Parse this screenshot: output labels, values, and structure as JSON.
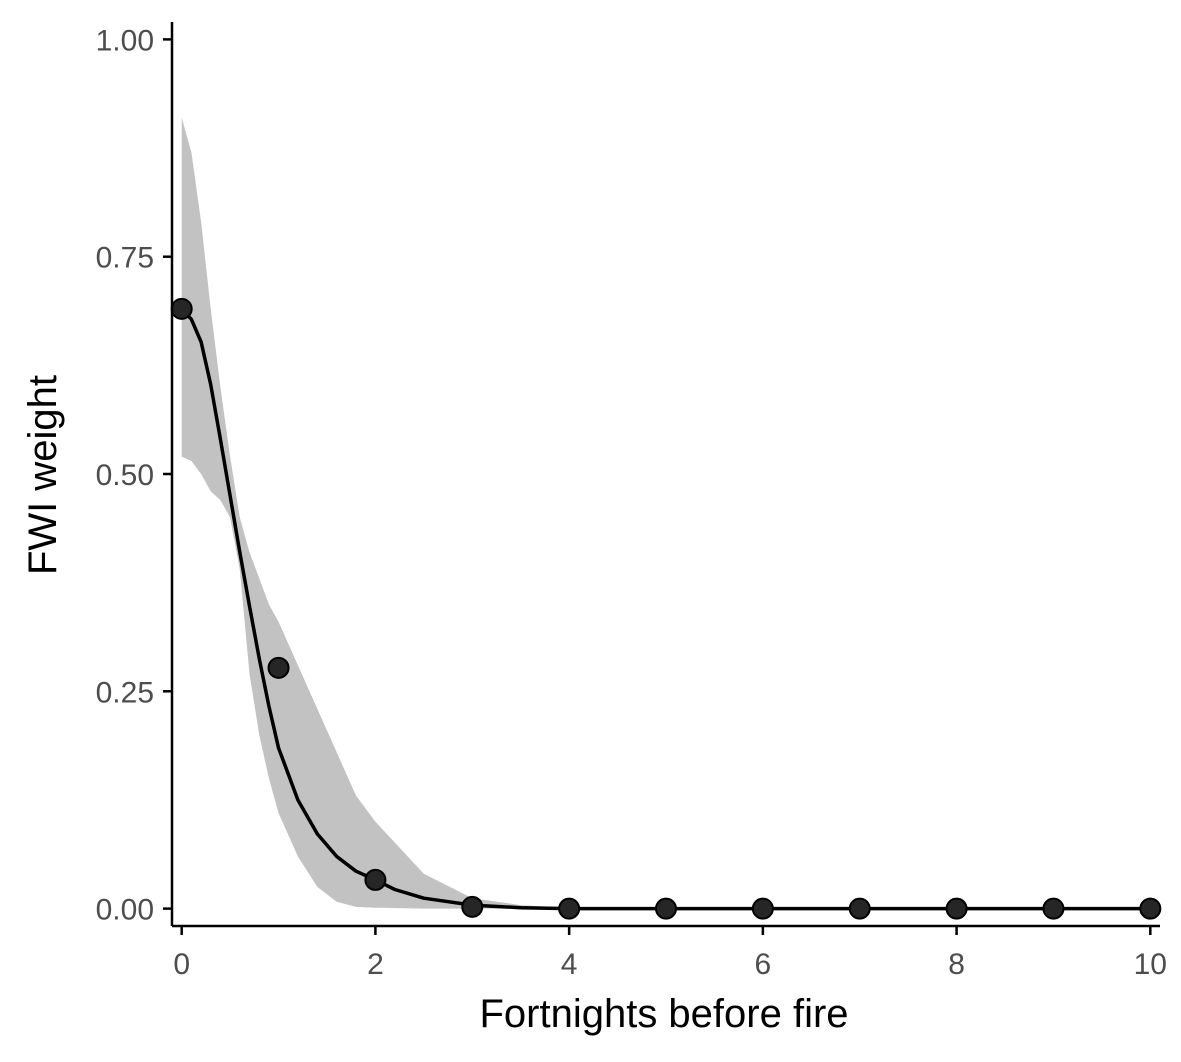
{
  "chart_data": {
    "type": "line",
    "title": "",
    "xlabel": "Fortnights before fire",
    "ylabel": "FWI weight",
    "xlim": [
      -0.1,
      10.1
    ],
    "ylim": [
      -0.02,
      1.02
    ],
    "x_ticks": [
      0,
      2,
      4,
      6,
      8,
      10
    ],
    "x_tick_labels": [
      "0",
      "2",
      "4",
      "6",
      "8",
      "10"
    ],
    "y_ticks": [
      0,
      0.25,
      0.5,
      0.75,
      1
    ],
    "y_tick_labels": [
      "0.00",
      "0.25",
      "0.50",
      "0.75",
      "1.00"
    ],
    "grid": false,
    "legend": "none",
    "series": [
      {
        "kind": "points",
        "x": [
          0,
          1,
          2,
          3,
          4,
          5,
          6,
          7,
          8,
          9,
          10
        ],
        "values": [
          0.69,
          0.277,
          0.033,
          0.002,
          0,
          0,
          0,
          0,
          0,
          0,
          0
        ]
      },
      {
        "kind": "fitted-line",
        "x": [
          0,
          0.1,
          0.2,
          0.3,
          0.4,
          0.5,
          0.6,
          0.7,
          0.8,
          0.9,
          1.0,
          1.2,
          1.4,
          1.6,
          1.8,
          2.0,
          2.2,
          2.5,
          3.0,
          3.5,
          4.0,
          5.0,
          10.0
        ],
        "values": [
          0.69,
          0.678,
          0.652,
          0.603,
          0.54,
          0.475,
          0.41,
          0.348,
          0.288,
          0.233,
          0.185,
          0.125,
          0.086,
          0.06,
          0.043,
          0.033,
          0.022,
          0.012,
          0.004,
          0.001,
          0,
          0,
          0
        ]
      },
      {
        "kind": "confidence-band",
        "x": [
          0,
          0.1,
          0.2,
          0.3,
          0.4,
          0.5,
          0.6,
          0.7,
          0.8,
          0.9,
          1.0,
          1.2,
          1.4,
          1.6,
          1.8,
          2.0,
          2.5,
          3.0,
          3.5,
          4.0,
          5.0,
          10.0
        ],
        "upper": [
          0.91,
          0.87,
          0.79,
          0.69,
          0.6,
          0.52,
          0.45,
          0.41,
          0.38,
          0.35,
          0.33,
          0.28,
          0.23,
          0.18,
          0.13,
          0.1,
          0.04,
          0.012,
          0.004,
          0.001,
          0,
          0
        ],
        "lower": [
          0.52,
          0.515,
          0.5,
          0.48,
          0.47,
          0.45,
          0.39,
          0.27,
          0.2,
          0.15,
          0.11,
          0.06,
          0.025,
          0.008,
          0.002,
          0.001,
          0,
          0,
          0,
          0,
          0,
          0
        ]
      }
    ],
    "colors": {
      "line": "#000000",
      "point_fill": "#262626",
      "band": "#c2c2c2",
      "axis": "#000000",
      "tick_text": "#4d4d4d"
    }
  }
}
